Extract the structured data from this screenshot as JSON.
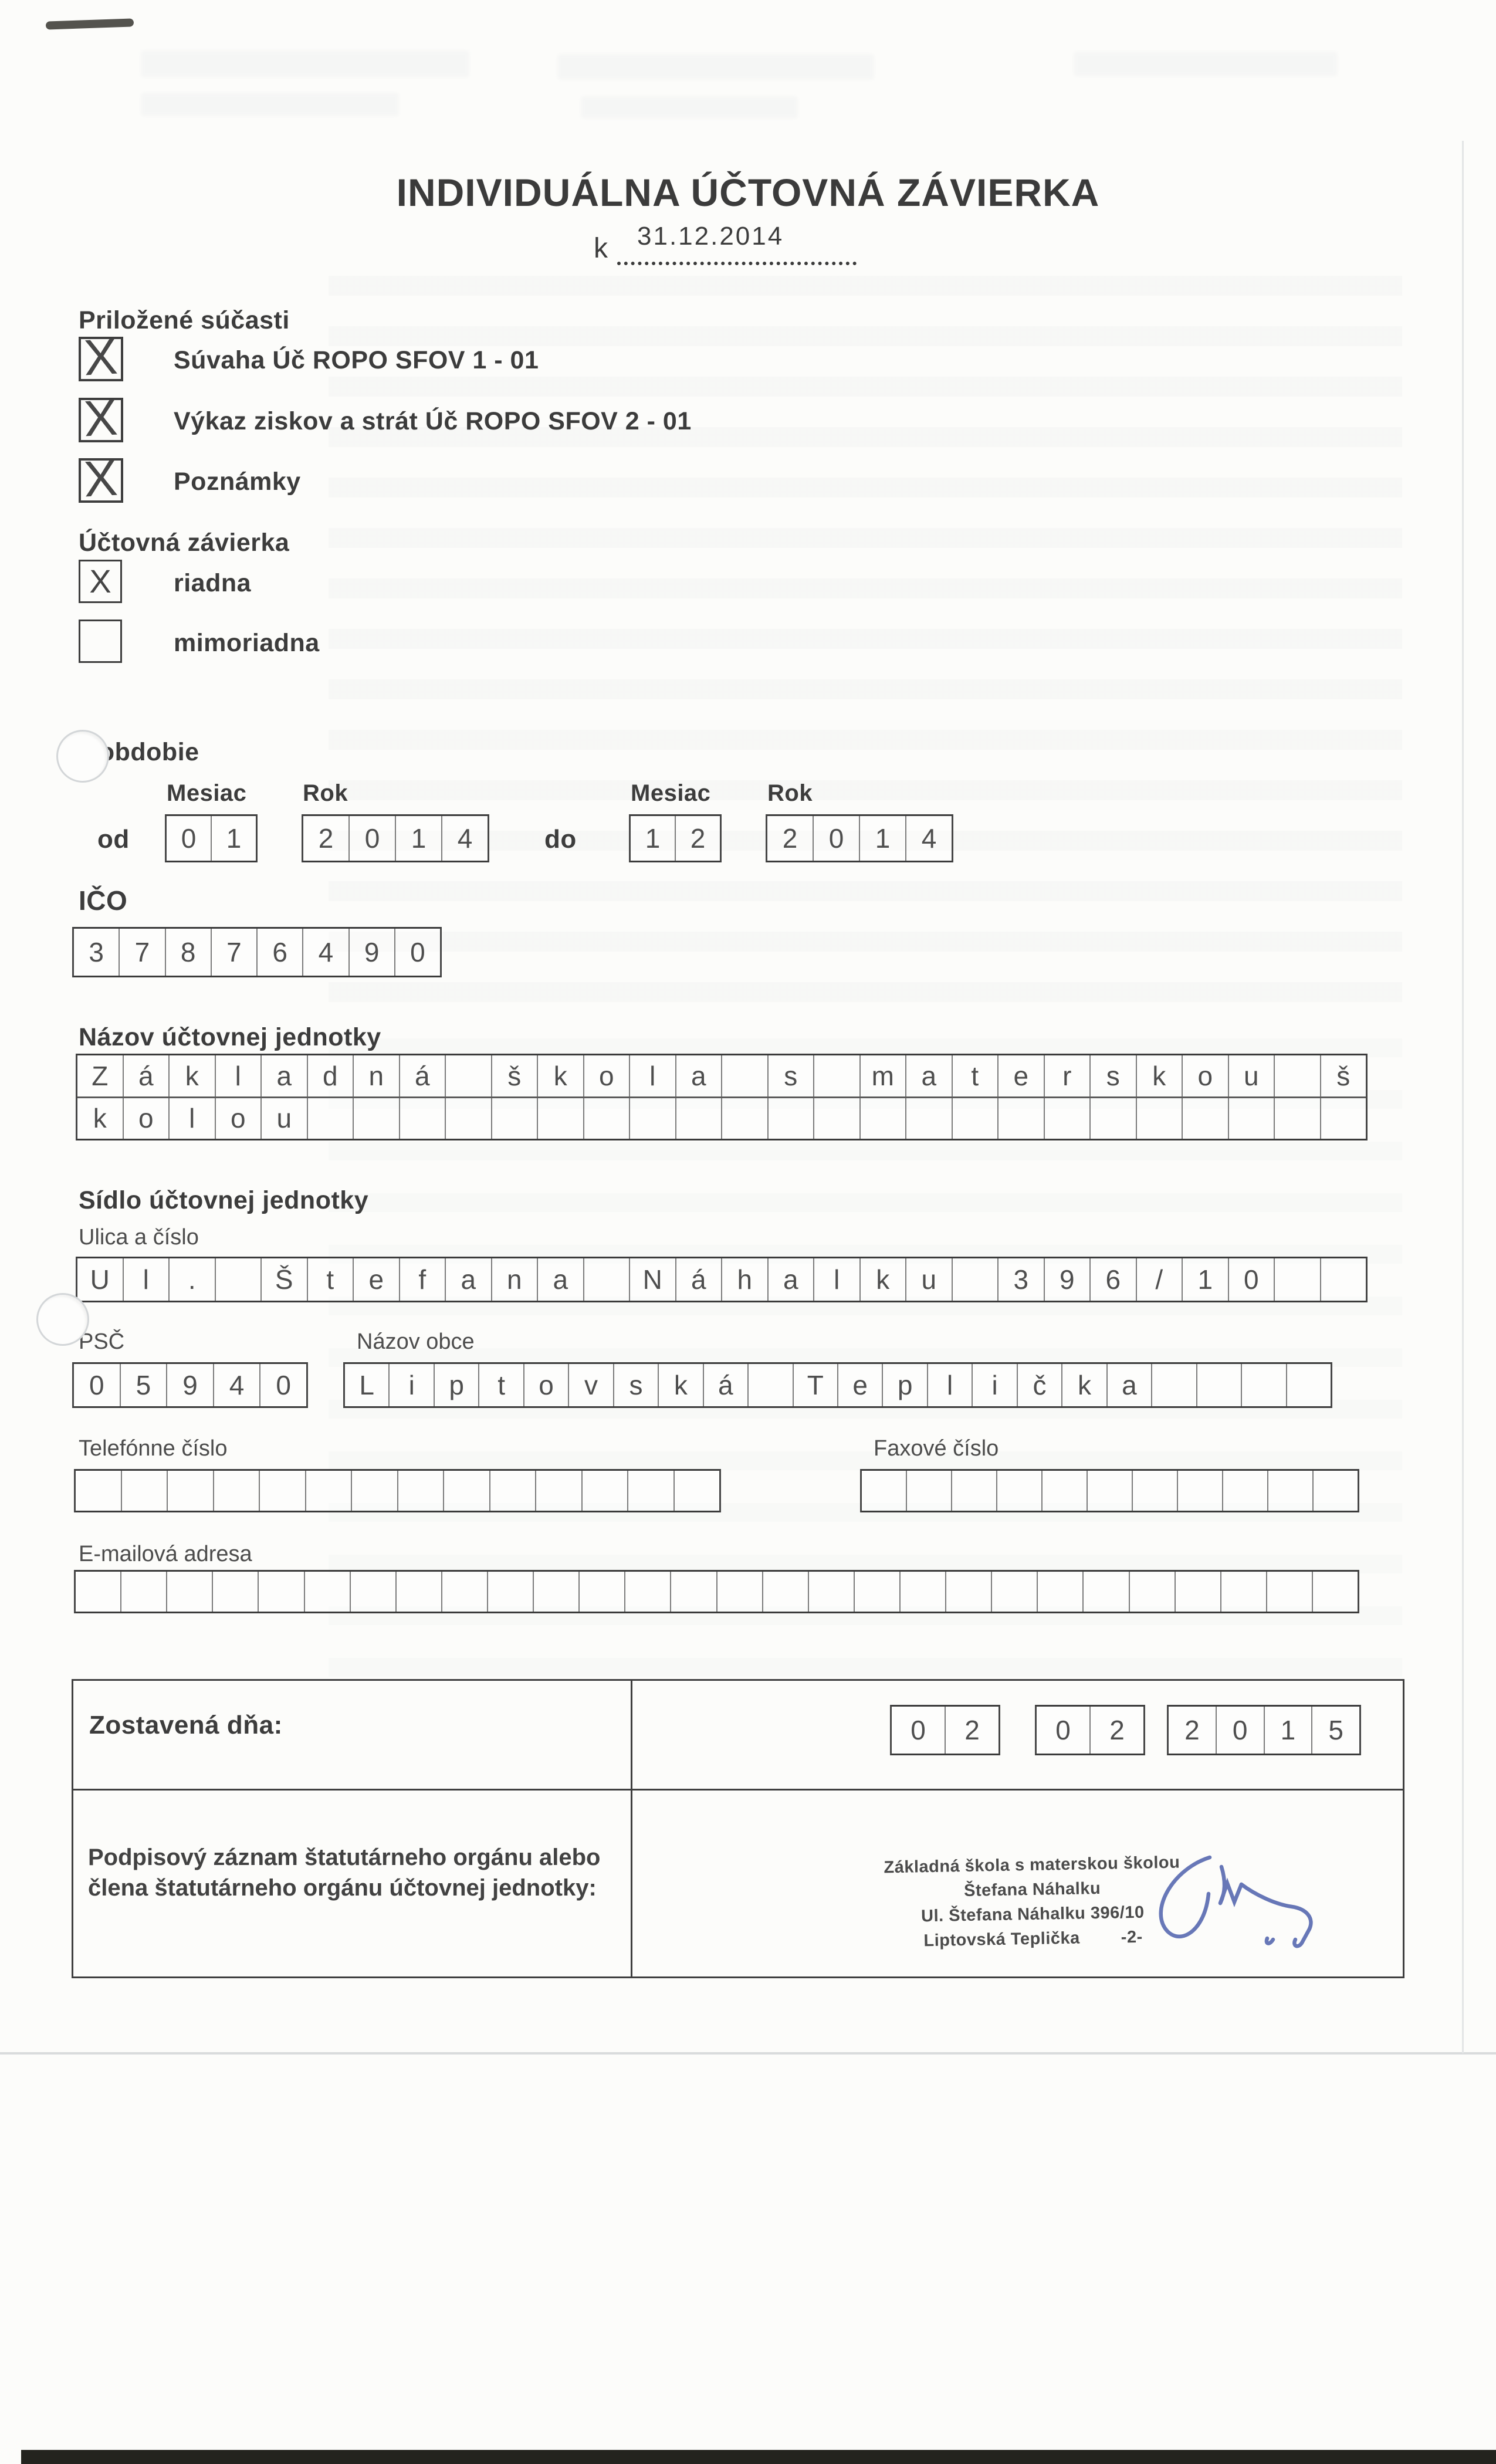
{
  "document": {
    "title": "INDIVIDUÁLNA ÚČTOVNÁ ZÁVIERKA",
    "as_of_prefix": "k",
    "as_of_date": "31.12.2014"
  },
  "attachments": {
    "heading": "Priložené súčasti",
    "items": [
      {
        "label": "Súvaha Úč ROPO SFOV 1 - 01",
        "mark": "X"
      },
      {
        "label": "Výkaz ziskov a strát Úč ROPO SFOV 2 - 01",
        "mark": "X"
      },
      {
        "label": "Poznámky",
        "mark": "X"
      }
    ]
  },
  "closing": {
    "heading": "Účtovná závierka",
    "options": [
      {
        "label": "riadna",
        "mark": "X"
      },
      {
        "label": "mimoriadna",
        "mark": ""
      }
    ]
  },
  "period": {
    "heading": "za obdobie",
    "month_label": "Mesiac",
    "year_label": "Rok",
    "from_label": "od",
    "to_label": "do",
    "from_month": [
      "0",
      "1"
    ],
    "from_year": [
      "2",
      "0",
      "1",
      "4"
    ],
    "to_month": [
      "1",
      "2"
    ],
    "to_year": [
      "2",
      "0",
      "1",
      "4"
    ]
  },
  "ico": {
    "label": "IČO",
    "digits": [
      "3",
      "7",
      "8",
      "7",
      "6",
      "4",
      "9",
      "0"
    ]
  },
  "entity_name": {
    "heading": "Názov účtovnej jednotky",
    "row1": [
      "Z",
      "á",
      "k",
      "l",
      "a",
      "d",
      "n",
      "á",
      "",
      "š",
      "k",
      "o",
      "l",
      "a",
      "",
      "s",
      "",
      "m",
      "a",
      "t",
      "e",
      "r",
      "s",
      "k",
      "o",
      "u",
      "",
      "š"
    ],
    "row2": [
      "k",
      "o",
      "l",
      "o",
      "u",
      "",
      "",
      "",
      "",
      "",
      "",
      "",
      "",
      "",
      "",
      "",
      "",
      "",
      "",
      "",
      "",
      "",
      "",
      "",
      "",
      "",
      "",
      ""
    ]
  },
  "address": {
    "heading": "Sídlo účtovnej jednotky",
    "street_label": "Ulica a číslo",
    "street": [
      "U",
      "l",
      ".",
      "",
      "Š",
      "t",
      "e",
      "f",
      "a",
      "n",
      "a",
      "",
      "N",
      "á",
      "h",
      "a",
      "l",
      "k",
      "u",
      "",
      "3",
      "9",
      "6",
      "/",
      "1",
      "0",
      "",
      ""
    ],
    "zip_label": "PSČ",
    "zip": [
      "0",
      "5",
      "9",
      "4",
      "0"
    ],
    "town_label": "Názov obce",
    "town": [
      "L",
      "i",
      "p",
      "t",
      "o",
      "v",
      "s",
      "k",
      "á",
      "",
      "T",
      "e",
      "p",
      "l",
      "i",
      "č",
      "k",
      "a",
      "",
      "",
      "",
      ""
    ],
    "phone_label": "Telefónne číslo",
    "phone": [
      "",
      "",
      "",
      "",
      "",
      "",
      "",
      "",
      "",
      "",
      "",
      "",
      "",
      ""
    ],
    "fax_label": "Faxové číslo",
    "fax": [
      "",
      "",
      "",
      "",
      "",
      "",
      "",
      "",
      "",
      "",
      ""
    ],
    "email_label": "E-mailová adresa",
    "email": [
      "",
      "",
      "",
      "",
      "",
      "",
      "",
      "",
      "",
      "",
      "",
      "",
      "",
      "",
      "",
      "",
      "",
      "",
      "",
      "",
      "",
      "",
      "",
      "",
      "",
      "",
      "",
      ""
    ]
  },
  "footer": {
    "prepared_label": "Zostavená dňa:",
    "prepared_day": [
      "0",
      "2"
    ],
    "prepared_month": [
      "0",
      "2"
    ],
    "prepared_year": [
      "2",
      "0",
      "1",
      "5"
    ],
    "signature_label_line1": "Podpisový záznam štatutárneho orgánu alebo",
    "signature_label_line2": "člena štatutárneho orgánu účtovnej jednotky:",
    "stamp": {
      "line1": "Základná škola s materskou školou",
      "line2": "Štefana Náhalku",
      "line3": "Ul. Štefana Náhalku 396/10",
      "line4": "Liptovská Teplička",
      "page_mark": "-2-"
    }
  },
  "colors": {
    "ink": "#3c3c3c",
    "signature_blue": "#5b6cb2"
  }
}
